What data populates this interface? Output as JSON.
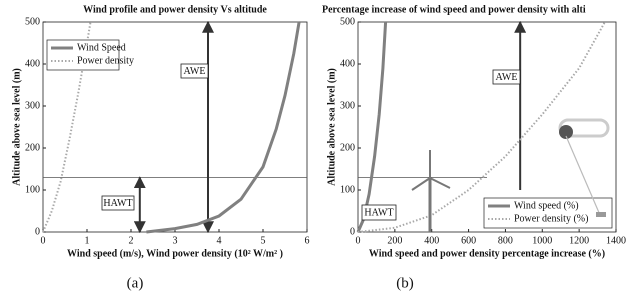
{
  "chart_data": [
    {
      "type": "line",
      "title": "Wind profile and power density Vs altitude",
      "xlabel": "Wind speed (m/s), Wind power density (10² W/m² )",
      "ylabel": "Altitude above sea level (m)",
      "caption": "(a)",
      "xlim": [
        0,
        6
      ],
      "xticks": [
        0,
        1,
        2,
        3,
        4,
        5,
        6
      ],
      "ylim": [
        0,
        500
      ],
      "yticks": [
        0,
        100,
        200,
        300,
        400,
        500
      ],
      "legend": "upper left",
      "series": [
        {
          "name": "Wind Speed",
          "color": "#808080",
          "dash": "solid",
          "x": [
            2.35,
            3,
            3.5,
            4,
            4.5,
            5,
            5.3,
            5.5,
            5.7,
            5.82
          ],
          "values": [
            0,
            8,
            18,
            38,
            78,
            155,
            245,
            325,
            425,
            500
          ]
        },
        {
          "name": "Power density",
          "color": "#a8a8a8",
          "dash": "dotted",
          "x": [
            0,
            0.2,
            0.4,
            0.6,
            0.8,
            1.0,
            1.08
          ],
          "values": [
            0,
            50,
            120,
            220,
            330,
            450,
            500
          ]
        }
      ],
      "hline": 130,
      "annotations": [
        {
          "text": "AWE",
          "x": 3.75,
          "y": [
            0,
            500
          ]
        },
        {
          "text": "HAWT",
          "x": 2.2,
          "y": [
            0,
            130
          ]
        }
      ]
    },
    {
      "type": "line",
      "title": "Percentage increase of  wind speed and power density with alti",
      "xlabel": "Wind speed and power density percentage increase (%)",
      "ylabel": "Altitude above sea level (m)",
      "caption": "(b)",
      "xlim": [
        0,
        1400
      ],
      "xticks": [
        0,
        200,
        400,
        600,
        800,
        1000,
        1200,
        1400
      ],
      "ylim": [
        0,
        500
      ],
      "yticks": [
        0,
        100,
        200,
        300,
        400,
        500
      ],
      "legend": "lower right",
      "series": [
        {
          "name": "Wind speed (%)",
          "color": "#808080",
          "dash": "solid",
          "x": [
            0,
            30,
            60,
            90,
            115,
            135,
            150
          ],
          "values": [
            0,
            30,
            90,
            180,
            280,
            390,
            500
          ]
        },
        {
          "name": "Power density (%)",
          "color": "#a8a8a8",
          "dash": "dotted",
          "x": [
            0,
            200,
            400,
            600,
            800,
            1000,
            1200,
            1340
          ],
          "values": [
            0,
            10,
            40,
            100,
            180,
            280,
            390,
            500
          ]
        }
      ],
      "hline": 130,
      "annotations": [
        {
          "text": "AWE",
          "x": 880,
          "y": [
            100,
            500
          ]
        },
        {
          "text": "HAWT"
        }
      ]
    }
  ]
}
